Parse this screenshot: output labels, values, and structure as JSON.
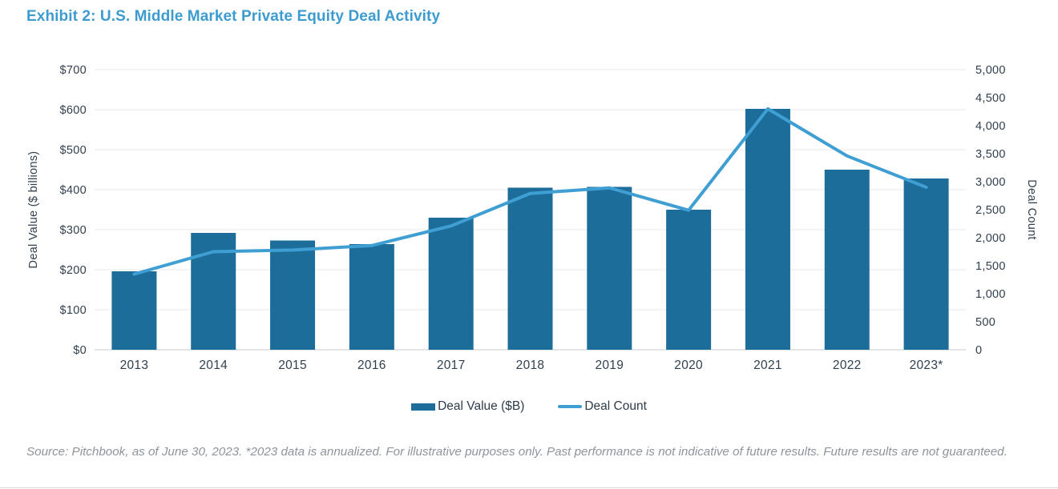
{
  "page": {
    "title": "Exhibit 2: U.S. Middle Market Private Equity Deal Activity",
    "source_note": "Source: Pitchbook, as of June 30, 2023. *2023 data is annualized. For illustrative purposes only. Past performance is not indicative of future results. Future results are not guaranteed."
  },
  "colors": {
    "title": "#3d9ccf",
    "bar": "#1d6d9b",
    "line": "#3f9fd3",
    "axis_text": "#31404f",
    "gridline": "#eaedf0",
    "axis_line": "#d2d7db",
    "source_text": "#8d949c"
  },
  "legend": {
    "items": [
      {
        "label": "Deal Value ($B)",
        "swatch": "bar"
      },
      {
        "label": "Deal Count",
        "swatch": "line"
      }
    ]
  },
  "chart_data": {
    "type": "bar",
    "subtype": "combo-bar-line-dual-axis",
    "categories": [
      "2013",
      "2014",
      "2015",
      "2016",
      "2017",
      "2018",
      "2019",
      "2020",
      "2021",
      "2022",
      "2023*"
    ],
    "series": [
      {
        "name": "Deal Value ($B)",
        "type": "bar",
        "axis": "left",
        "color": "#1d6d9b",
        "values": [
          196,
          292,
          273,
          264,
          330,
          405,
          407,
          350,
          602,
          450,
          428
        ]
      },
      {
        "name": "Deal Count",
        "type": "line",
        "axis": "right",
        "color": "#3f9fd3",
        "values": [
          1350,
          1750,
          1780,
          1860,
          2210,
          2790,
          2890,
          2490,
          4300,
          3460,
          2900
        ]
      }
    ],
    "left_axis": {
      "label": "Deal Value ($ billions)",
      "min": 0,
      "max": 700,
      "tick_step": 100,
      "ticks": [
        "$0",
        "$100",
        "$200",
        "$300",
        "$400",
        "$500",
        "$600",
        "$700"
      ]
    },
    "right_axis": {
      "label": "Deal Count",
      "min": 0,
      "max": 5000,
      "tick_step": 500,
      "ticks": [
        "0",
        "500",
        "1,000",
        "1,500",
        "2,000",
        "2,500",
        "3,000",
        "3,500",
        "4,000",
        "4,500",
        "5,000"
      ]
    },
    "grid": "horizontal",
    "legend_position": "bottom"
  }
}
